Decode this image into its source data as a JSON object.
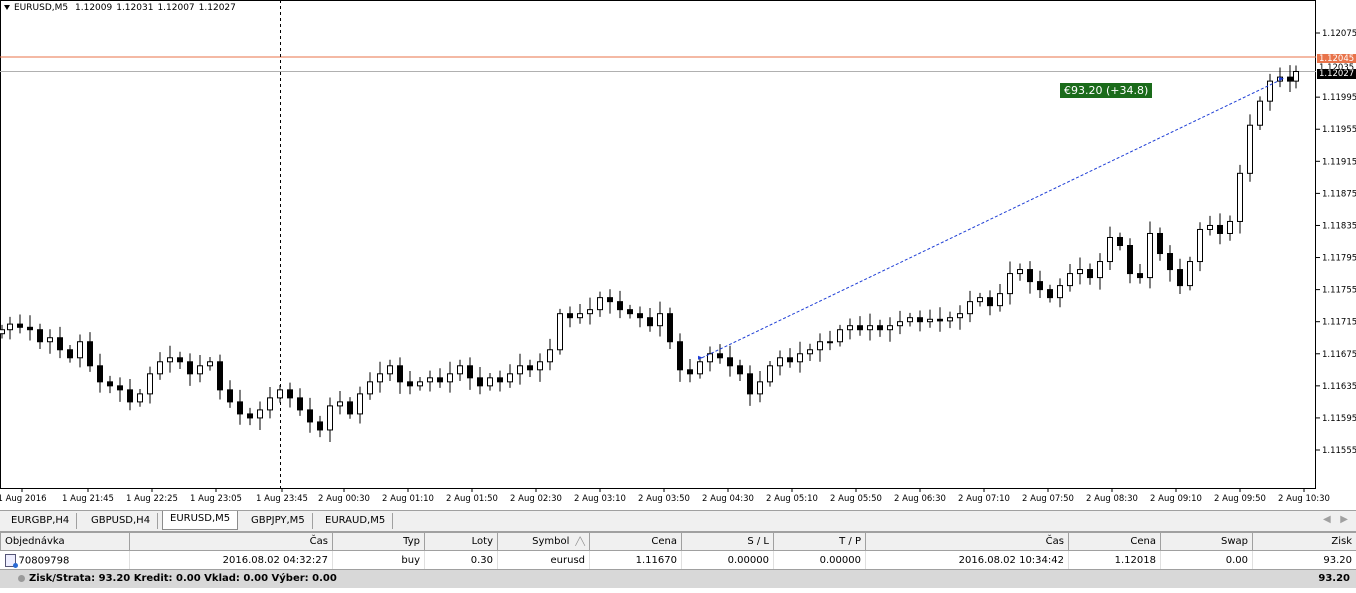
{
  "chart": {
    "symbol": "EURUSD,M5",
    "ohlc": [
      "1.12009",
      "1.12031",
      "1.12007",
      "1.12027"
    ],
    "profit_label": "€93.20 (+34.8)",
    "price_ticks": [
      "1.12075",
      "1.11995",
      "1.11955",
      "1.11915",
      "1.11875",
      "1.11835",
      "1.11795",
      "1.11755",
      "1.11715",
      "1.11675",
      "1.11635",
      "1.11595",
      "1.11555"
    ],
    "price_tag_orange": "1.12045",
    "price_tag_gray": "1.12035",
    "price_tag_black": "1.12027",
    "time_ticks": [
      "1 Aug 2016",
      "1 Aug 21:45",
      "1 Aug 22:25",
      "1 Aug 23:05",
      "1 Aug 23:45",
      "2 Aug 00:30",
      "2 Aug 01:10",
      "2 Aug 01:50",
      "2 Aug 02:30",
      "2 Aug 03:10",
      "2 Aug 03:50",
      "2 Aug 04:30",
      "2 Aug 05:10",
      "2 Aug 05:50",
      "2 Aug 06:30",
      "2 Aug 07:10",
      "2 Aug 07:50",
      "2 Aug 08:30",
      "2 Aug 09:10",
      "2 Aug 09:50",
      "2 Aug 10:30"
    ],
    "colors": {
      "orange_line": "#e8734a",
      "gray_line": "#b0b0b0",
      "trade_line": "#1f3fd6",
      "profit_bg": "#1a6b1a"
    }
  },
  "tabs": [
    {
      "label": "EURGBP,H4",
      "active": false
    },
    {
      "label": "GBPUSD,H4",
      "active": false
    },
    {
      "label": "EURUSD,M5",
      "active": true
    },
    {
      "label": "GBPJPY,M5",
      "active": false
    },
    {
      "label": "EURAUD,M5",
      "active": false
    }
  ],
  "terminal": {
    "headers": [
      "Objednávka",
      "Čas",
      "Typ",
      "Loty",
      "Symbol",
      "Cena",
      "S / L",
      "T / P",
      "Čas",
      "Cena",
      "Swap",
      "Zisk"
    ],
    "row": [
      "70809798",
      "2016.08.02 04:32:27",
      "buy",
      "0.30",
      "eurusd",
      "1.11670",
      "0.00000",
      "0.00000",
      "2016.08.02 10:34:42",
      "1.12018",
      "0.00",
      "93.20"
    ],
    "summary": "Zisk/Strata: 93.20  Kredit: 0.00  Vklad: 0.00  Výber: 0.00",
    "summary_total": "93.20"
  }
}
